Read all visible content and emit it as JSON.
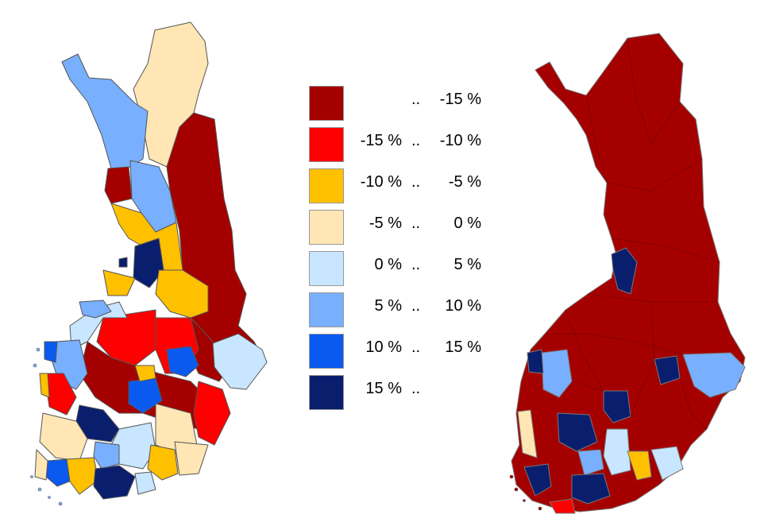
{
  "legend": {
    "separator": "..",
    "classes": [
      {
        "from": "",
        "to": "-15 %",
        "color": "#A50000"
      },
      {
        "from": "-15 %",
        "to": "-10 %",
        "color": "#FF0000"
      },
      {
        "from": "-10 %",
        "to": "-5 %",
        "color": "#FFC000"
      },
      {
        "from": "-5 %",
        "to": "0 %",
        "color": "#FFE6B4"
      },
      {
        "from": "0 %",
        "to": "5 %",
        "color": "#C8E6FF"
      },
      {
        "from": "5 %",
        "to": "10 %",
        "color": "#78AFFF"
      },
      {
        "from": "10 %",
        "to": "15 %",
        "color": "#0A5AF0"
      },
      {
        "from": "15 %",
        "to": "",
        "color": "#0A1E6E"
      }
    ]
  },
  "maps": {
    "left": {
      "dominant_class": "mixed"
    },
    "right": {
      "dominant_class": 0
    }
  }
}
